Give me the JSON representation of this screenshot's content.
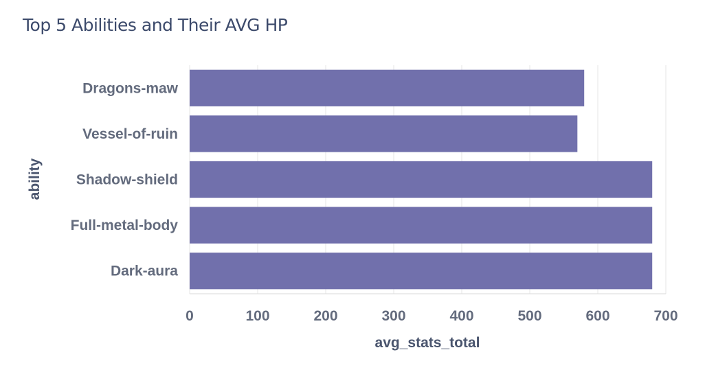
{
  "chart_data": {
    "type": "bar",
    "orientation": "horizontal",
    "title": "Top 5 Abilities and Their AVG HP",
    "xlabel": "avg_stats_total",
    "ylabel": "ability",
    "categories": [
      "Dragons-maw",
      "Vessel-of-ruin",
      "Shadow-shield",
      "Full-metal-body",
      "Dark-aura"
    ],
    "values": [
      580,
      570,
      680,
      680,
      680
    ],
    "xlim": [
      0,
      700
    ],
    "xticks": [
      0,
      100,
      200,
      300,
      400,
      500,
      600,
      700
    ],
    "grid": true,
    "bar_color": "#7170ac"
  }
}
